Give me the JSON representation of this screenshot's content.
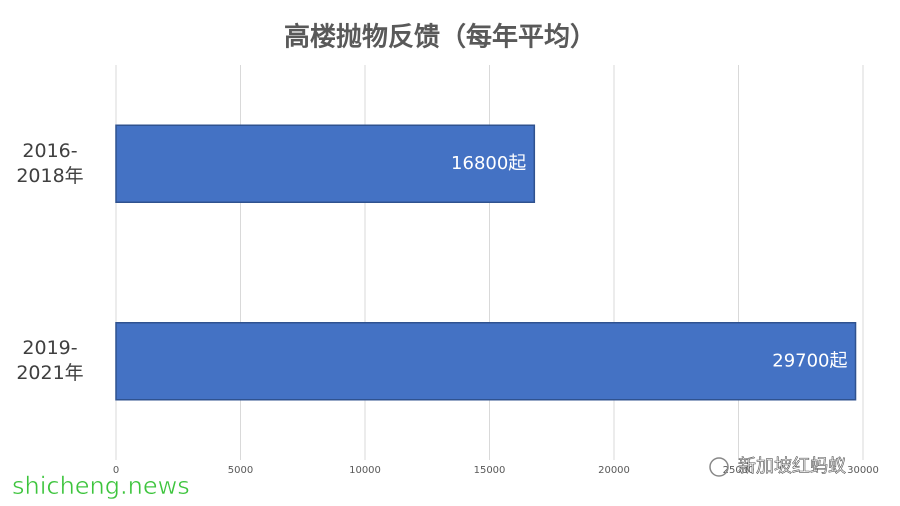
{
  "chart_data": {
    "type": "bar",
    "orientation": "horizontal",
    "title": "高楼抛物反馈（每年平均）",
    "categories": [
      "2016-\n2018年",
      "2019-\n2021年"
    ],
    "values": [
      16800,
      29700
    ],
    "value_labels": [
      "16800起",
      "29700起"
    ],
    "color": "#4472c4",
    "xlim": [
      0,
      30000
    ],
    "xticks": [
      0,
      5000,
      10000,
      15000,
      20000,
      25000,
      30000
    ],
    "grid": true,
    "annotations": [
      "shicheng.news",
      "新加坡红蚂蚁"
    ]
  }
}
